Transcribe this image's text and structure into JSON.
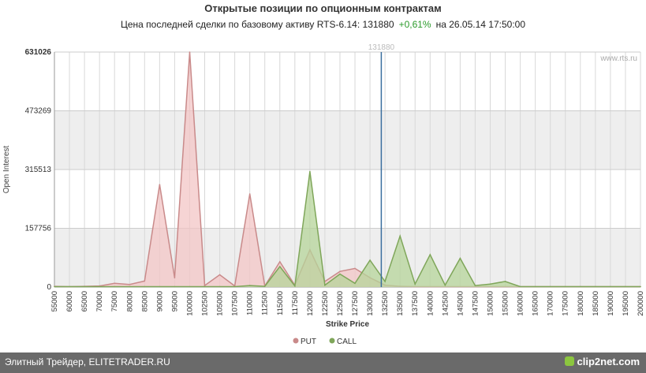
{
  "header": {
    "title": "Открытые позиции по опционным контрактам",
    "subtitle_prefix": "Цена последней сделки по базовому активу RTS-6.14:",
    "last_price": "131880",
    "change": "+0,61%",
    "date_text": "на 26.05.14 17:50:00"
  },
  "watermark": "www.rts.ru",
  "footer": {
    "left_text": "Элитный Трейдер, ELITETRADER.RU",
    "logo_text": "clip2net.com"
  },
  "colors": {
    "put_fill": "#f3c5c5",
    "put_line": "#c98a8a",
    "call_fill": "#b5d49a",
    "call_line": "#7fa65a",
    "price_line": "#3a6e9e",
    "band": "#eeeeee",
    "grid": "#d8d8d8",
    "change_positive": "#2a9a2a"
  },
  "chart_data": {
    "type": "area",
    "xlabel": "Strike Price",
    "ylabel": "Open Interest",
    "ylim": [
      0,
      631026
    ],
    "xlim": [
      55000,
      200000
    ],
    "y_ticks": [
      "0",
      "157756",
      "315513",
      "473269",
      "631026"
    ],
    "x": [
      55000,
      60000,
      65000,
      70000,
      75000,
      80000,
      85000,
      90000,
      95000,
      100000,
      102500,
      105000,
      107500,
      110000,
      112500,
      115000,
      117500,
      120000,
      122500,
      125000,
      127500,
      130000,
      132500,
      135000,
      137500,
      140000,
      142500,
      145000,
      147500,
      150000,
      155000,
      160000,
      165000,
      170000,
      175000,
      180000,
      185000,
      190000,
      195000,
      200000
    ],
    "x_tick_labels": [
      "55000",
      "60000",
      "65000",
      "70000",
      "75000",
      "80000",
      "85000",
      "90000",
      "95000",
      "100000",
      "102500",
      "105000",
      "107500",
      "110000",
      "112500",
      "115000",
      "117500",
      "120000",
      "122500",
      "125000",
      "127500",
      "130000",
      "132500",
      "135000",
      "137500",
      "140000",
      "142500",
      "145000",
      "147500",
      "150000",
      "155000",
      "160000",
      "165000",
      "170000",
      "175000",
      "180000",
      "185000",
      "190000",
      "195000",
      "200000"
    ],
    "price_marker": {
      "value": 131880,
      "label": "131880"
    },
    "series": [
      {
        "name": "PUT",
        "values": [
          2000,
          1000,
          2000,
          3000,
          10000,
          7000,
          16000,
          275000,
          25000,
          631026,
          4000,
          33000,
          3000,
          250000,
          3000,
          68000,
          5000,
          100000,
          15000,
          42000,
          50000,
          25000,
          5000,
          2000,
          1000,
          1000,
          1000,
          1000,
          1000,
          1000,
          1000,
          1000,
          1000,
          1000,
          1000,
          1000,
          1000,
          1000,
          1000,
          1000
        ]
      },
      {
        "name": "CALL",
        "values": [
          1000,
          1000,
          1000,
          1000,
          1000,
          1000,
          1000,
          1000,
          1000,
          1000,
          1000,
          1000,
          1000,
          4000,
          2000,
          55000,
          3000,
          310000,
          5000,
          35000,
          10000,
          72000,
          15000,
          137000,
          8000,
          87000,
          5000,
          77000,
          4000,
          8000,
          15000,
          1000,
          1000,
          1000,
          1000,
          1000,
          1000,
          1000,
          1000,
          1000
        ]
      }
    ],
    "legend_position": "bottom-center",
    "grid": true
  }
}
